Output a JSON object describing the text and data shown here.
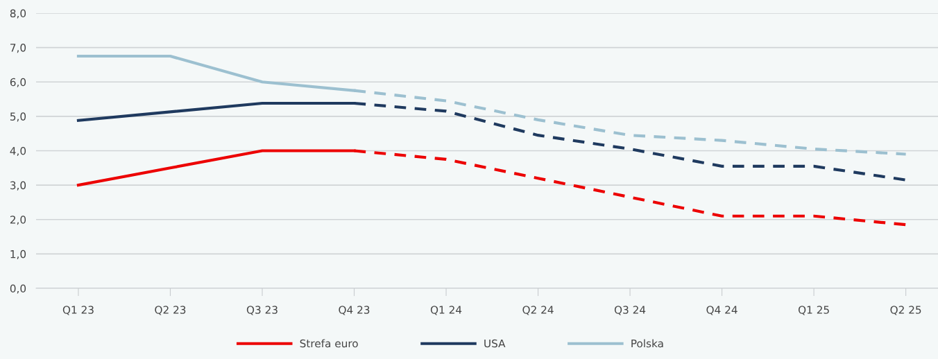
{
  "chart_data": {
    "type": "line",
    "categories": [
      "Q1 23",
      "Q2 23",
      "Q3 23",
      "Q4 23",
      "Q1 24",
      "Q2 24",
      "Q3 24",
      "Q4 24",
      "Q1 25",
      "Q2 25"
    ],
    "series": [
      {
        "name": "Strefa euro",
        "color": "#ec0000",
        "line_style": "solid",
        "values": [
          3.0,
          3.5,
          4.0,
          4.0,
          null,
          null,
          null,
          null,
          null,
          null
        ]
      },
      {
        "name": "USA",
        "color": "#1f3a5f",
        "line_style": "solid",
        "values": [
          4.88,
          5.13,
          5.38,
          5.38,
          null,
          null,
          null,
          null,
          null,
          null
        ]
      },
      {
        "name": "Polska",
        "color": "#9cc0d0",
        "line_style": "solid",
        "values": [
          6.75,
          6.75,
          6.0,
          5.75,
          null,
          null,
          null,
          null,
          null,
          null
        ]
      },
      {
        "color": "#ec0000",
        "line_style": "dashed",
        "values": [
          null,
          null,
          null,
          4.0,
          3.75,
          3.2,
          2.65,
          2.1,
          2.1,
          1.85
        ]
      },
      {
        "color": "#1f3a5f",
        "line_style": "dashed",
        "values": [
          null,
          null,
          null,
          5.38,
          5.15,
          4.45,
          4.05,
          3.55,
          3.55,
          3.15
        ]
      },
      {
        "color": "#9cc0d0",
        "line_style": "dashed",
        "values": [
          null,
          null,
          null,
          5.75,
          5.45,
          4.9,
          4.45,
          4.3,
          4.05,
          3.9
        ]
      }
    ],
    "ylim": [
      0,
      8
    ],
    "yticks": [
      {
        "value": 0,
        "label": "0,0"
      },
      {
        "value": 1,
        "label": "1,0"
      },
      {
        "value": 2,
        "label": "2,0"
      },
      {
        "value": 3,
        "label": "3,0"
      },
      {
        "value": 4,
        "label": "4,0"
      },
      {
        "value": 5,
        "label": "5,0"
      },
      {
        "value": 6,
        "label": "6,0"
      },
      {
        "value": 7,
        "label": "7,0"
      },
      {
        "value": 8,
        "label": "8,0"
      }
    ],
    "grid": "y",
    "legend": "bottom",
    "marker": "none"
  }
}
